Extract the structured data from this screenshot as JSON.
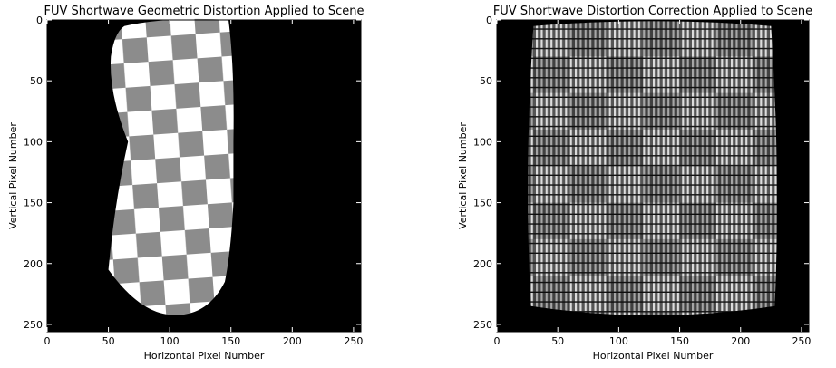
{
  "chart_data": [
    {
      "type": "image",
      "title": "FUV Shortwave Geometric Distortion Applied to Scene",
      "xlabel": "Horizontal Pixel Number",
      "ylabel": "Vertical Pixel Number",
      "xlim": [
        0,
        256
      ],
      "ylim": [
        256,
        0
      ],
      "xticks": [
        0,
        50,
        100,
        150,
        200,
        250
      ],
      "yticks": [
        0,
        50,
        100,
        150,
        200,
        250
      ]
    },
    {
      "type": "image",
      "title": "FUV Shortwave Distortion Correction Applied to Scene",
      "xlabel": "Horizontal Pixel Number",
      "ylabel": "Vertical Pixel Number",
      "xlim": [
        0,
        256
      ],
      "ylim": [
        256,
        0
      ],
      "xticks": [
        0,
        50,
        100,
        150,
        200,
        250
      ],
      "yticks": [
        0,
        50,
        100,
        150,
        200,
        250
      ]
    }
  ]
}
